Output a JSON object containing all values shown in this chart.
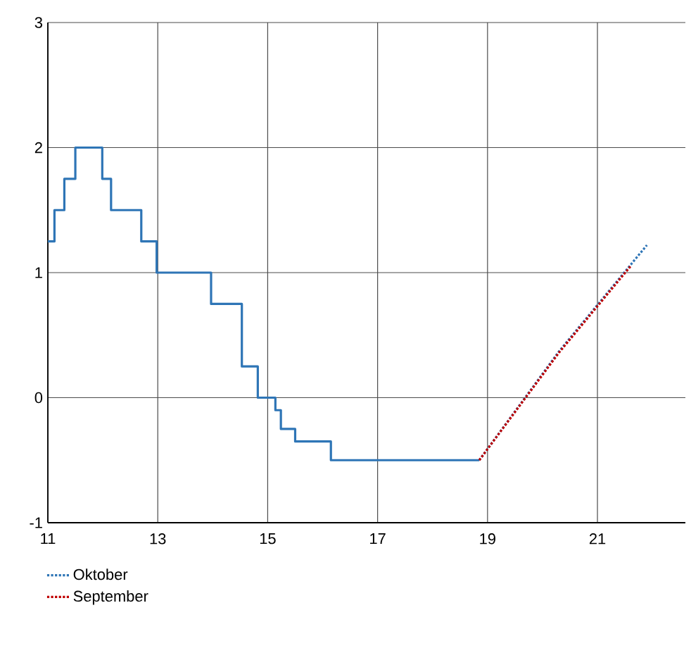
{
  "chart_data": {
    "type": "line",
    "xlim": [
      11,
      22.6
    ],
    "ylim": [
      -1,
      3
    ],
    "xticks": [
      11,
      13,
      15,
      17,
      19,
      21
    ],
    "yticks": [
      -1,
      0,
      1,
      2,
      3
    ],
    "grid": true,
    "legend": "bottom left",
    "series": [
      {
        "type": "step",
        "color": "#2e75b6",
        "x": [
          11.0,
          11.12,
          11.3,
          11.5,
          11.99,
          12.15,
          12.7,
          12.98,
          13.97,
          14.53,
          14.82,
          15.14,
          15.24,
          15.5,
          16.15,
          18.85
        ],
        "values": [
          1.25,
          1.5,
          1.75,
          2.0,
          1.75,
          1.5,
          1.25,
          1.0,
          0.75,
          0.25,
          0,
          -0.1,
          -0.25,
          -0.35,
          -0.5,
          -0.5
        ]
      },
      {
        "name": "Oktober",
        "color": "#2e75b6",
        "line_style": "dotted",
        "x": [
          18.85,
          20.3,
          21.9
        ],
        "values": [
          -0.5,
          0.37,
          1.22
        ]
      },
      {
        "name": "September",
        "color": "#c00000",
        "line_style": "dotted",
        "x": [
          18.85,
          20.3,
          21.6
        ],
        "values": [
          -0.5,
          0.36,
          1.05
        ]
      }
    ]
  }
}
